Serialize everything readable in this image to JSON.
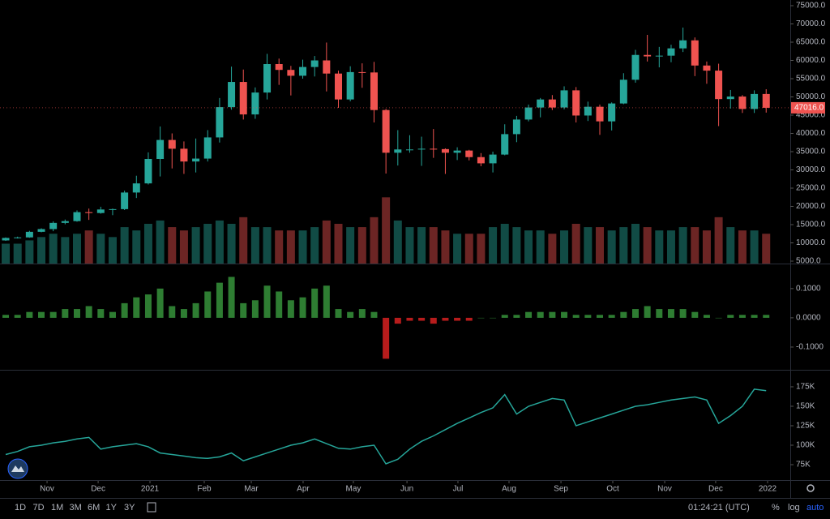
{
  "chart_data": [
    {
      "type": "candlestick",
      "grid": false,
      "up_color": "#26a69a",
      "down_color": "#ef5350",
      "xlim": [
        -0.48,
        66.03
      ],
      "ylim": [
        4333,
        76556
      ],
      "yticks": [
        {
          "value": 5000,
          "label": "5000.0"
        },
        {
          "value": 10000,
          "label": "10000.0"
        },
        {
          "value": 15000,
          "label": "15000.0"
        },
        {
          "value": 20000,
          "label": "20000.0"
        },
        {
          "value": 25000,
          "label": "25000.0"
        },
        {
          "value": 30000,
          "label": "30000.0"
        },
        {
          "value": 35000,
          "label": "35000.0"
        },
        {
          "value": 40000,
          "label": "40000.0"
        },
        {
          "value": 45000,
          "label": "45000.0"
        },
        {
          "value": 50000,
          "label": "50000.0"
        },
        {
          "value": 55000,
          "label": "55000.0"
        },
        {
          "value": 60000,
          "label": "60000.0"
        },
        {
          "value": 65000,
          "label": "65000.0"
        },
        {
          "value": 70000,
          "label": "70000.0"
        },
        {
          "value": 75000,
          "label": "75000.0"
        }
      ],
      "open": [
        10670,
        11360,
        11500,
        13030,
        13780,
        15480,
        15960,
        18420,
        18180,
        19150,
        19250,
        23800,
        26300,
        33000,
        38200,
        35800,
        32300,
        33100,
        38900,
        47200,
        54100,
        45200,
        51200,
        59000,
        57400,
        55800,
        58200,
        60000,
        56400,
        49300,
        56800,
        56700,
        46400,
        34700,
        35600,
        35600,
        35800,
        35700,
        34700,
        35300,
        33500,
        31800,
        34200,
        39800,
        43800,
        47100,
        49300,
        47100,
        51800,
        44900,
        47300,
        43300,
        48200,
        54700,
        61500,
        61100,
        61300,
        63300,
        65500,
        58600,
        57200,
        49400,
        50100,
        46700,
        50800
      ],
      "high": [
        11500,
        11700,
        13300,
        14000,
        15900,
        16400,
        18900,
        19400,
        19900,
        19400,
        24300,
        28400,
        34800,
        41900,
        40000,
        37800,
        38600,
        40900,
        49700,
        58300,
        57500,
        52600,
        61800,
        60500,
        58500,
        60200,
        61200,
        64900,
        57200,
        58400,
        59200,
        59600,
        46700,
        40900,
        39500,
        39100,
        41200,
        35900,
        36200,
        35500,
        34600,
        35000,
        42500,
        44800,
        47900,
        49700,
        50500,
        52900,
        52700,
        48700,
        47900,
        48500,
        56500,
        62900,
        67000,
        63700,
        64300,
        69000,
        66300,
        59700,
        59100,
        51900,
        50500,
        51800,
        52100
      ],
      "low": [
        10550,
        11200,
        11400,
        12900,
        13200,
        15100,
        15800,
        16300,
        18000,
        17600,
        19000,
        22300,
        26000,
        28200,
        30400,
        28900,
        29300,
        32300,
        37500,
        46500,
        43800,
        44000,
        49300,
        53300,
        50400,
        55000,
        55600,
        51500,
        47000,
        48800,
        52500,
        43000,
        29000,
        31200,
        34700,
        31100,
        33300,
        28900,
        32700,
        32600,
        31000,
        29300,
        34000,
        37600,
        43300,
        44400,
        46400,
        46600,
        43000,
        43400,
        39600,
        40800,
        48000,
        53900,
        59700,
        58100,
        59500,
        62300,
        55700,
        53600,
        42000,
        46800,
        45600,
        45600,
        45700
      ],
      "close": [
        11360,
        11500,
        13030,
        13780,
        15480,
        15960,
        18420,
        18180,
        19150,
        19250,
        23800,
        26300,
        33000,
        38200,
        35800,
        32300,
        33100,
        38900,
        47200,
        54100,
        45200,
        51200,
        59000,
        57400,
        55800,
        58200,
        60000,
        56400,
        49300,
        56800,
        56700,
        46400,
        34700,
        35600,
        35600,
        35800,
        35700,
        34700,
        35300,
        33500,
        31800,
        34200,
        39800,
        43800,
        47100,
        49300,
        47100,
        51800,
        44900,
        47300,
        43300,
        48200,
        54700,
        61500,
        61100,
        61300,
        63300,
        65500,
        58600,
        57200,
        49400,
        50100,
        46700,
        50800,
        47016
      ],
      "volume": [
        30,
        30,
        35,
        40,
        45,
        40,
        45,
        50,
        45,
        40,
        55,
        50,
        60,
        65,
        55,
        50,
        55,
        60,
        65,
        60,
        70,
        55,
        55,
        50,
        50,
        50,
        55,
        65,
        60,
        55,
        55,
        70,
        100,
        65,
        55,
        55,
        55,
        50,
        45,
        45,
        45,
        55,
        60,
        55,
        50,
        50,
        45,
        50,
        60,
        55,
        55,
        50,
        55,
        60,
        55,
        50,
        50,
        55,
        55,
        50,
        70,
        55,
        50,
        50,
        45
      ],
      "vlim": [
        0,
        120
      ],
      "last_price": {
        "value": 47016,
        "label": "47016.0"
      }
    },
    {
      "type": "bar",
      "grid": false,
      "up_color": "#2e7d32",
      "down_color": "#b71c1c",
      "xlim": [
        -0.48,
        66.03
      ],
      "ylim": [
        -0.175,
        0.18
      ],
      "yticks": [
        {
          "value": 0.1,
          "label": "0.1000"
        },
        {
          "value": 0,
          "label": "0.0000"
        },
        {
          "value": -0.1,
          "label": "-0.1000"
        }
      ],
      "values": [
        0.01,
        0.01,
        0.02,
        0.02,
        0.02,
        0.03,
        0.03,
        0.04,
        0.03,
        0.02,
        0.05,
        0.07,
        0.08,
        0.1,
        0.04,
        0.03,
        0.05,
        0.09,
        0.12,
        0.14,
        0.05,
        0.06,
        0.11,
        0.09,
        0.06,
        0.07,
        0.1,
        0.11,
        0.03,
        0.02,
        0.03,
        0.02,
        -0.14,
        -0.02,
        -0.01,
        -0.01,
        -0.02,
        -0.01,
        -0.01,
        -0.01,
        0.0,
        0.0,
        0.01,
        0.01,
        0.02,
        0.02,
        0.02,
        0.02,
        0.01,
        0.01,
        0.01,
        0.01,
        0.02,
        0.03,
        0.04,
        0.03,
        0.03,
        0.03,
        0.02,
        0.01,
        0.0,
        0.01,
        0.01,
        0.01,
        0.01
      ]
    },
    {
      "type": "line",
      "grid": false,
      "color": "#26a69a",
      "xlim": [
        -0.48,
        66.03
      ],
      "ylim": [
        57300,
        195800
      ],
      "yticks": [
        {
          "value": 75000,
          "label": "75K"
        },
        {
          "value": 100000,
          "label": "100K"
        },
        {
          "value": 125000,
          "label": "125K"
        },
        {
          "value": 150000,
          "label": "150K"
        },
        {
          "value": 175000,
          "label": "175K"
        }
      ],
      "values": [
        88000,
        92000,
        98000,
        100000,
        103000,
        105000,
        108000,
        110000,
        95000,
        98000,
        100000,
        102000,
        98000,
        90000,
        88000,
        86000,
        84000,
        83000,
        85000,
        90000,
        80000,
        85000,
        90000,
        95000,
        100000,
        103000,
        108000,
        102000,
        96000,
        95000,
        98000,
        100000,
        76000,
        82000,
        95000,
        105000,
        112000,
        120000,
        128000,
        135000,
        142000,
        148000,
        165000,
        140000,
        150000,
        155000,
        160000,
        158000,
        125000,
        130000,
        135000,
        140000,
        145000,
        150000,
        152000,
        155000,
        158000,
        160000,
        162000,
        158000,
        128000,
        138000,
        150000,
        172000,
        170000
      ],
      "xticks": [
        {
          "value": 3.48,
          "label": "Nov"
        },
        {
          "value": 7.78,
          "label": "Dec"
        },
        {
          "value": 12.14,
          "label": "2021"
        },
        {
          "value": 16.71,
          "label": "Feb"
        },
        {
          "value": 20.67,
          "label": "Mar"
        },
        {
          "value": 25.03,
          "label": "Apr"
        },
        {
          "value": 29.26,
          "label": "May"
        },
        {
          "value": 33.77,
          "label": "Jun"
        },
        {
          "value": 38.06,
          "label": "Jul"
        },
        {
          "value": 42.36,
          "label": "Aug"
        },
        {
          "value": 46.73,
          "label": "Sep"
        },
        {
          "value": 51.09,
          "label": "Oct"
        },
        {
          "value": 55.46,
          "label": "Nov"
        },
        {
          "value": 59.75,
          "label": "Dec"
        },
        {
          "value": 64.12,
          "label": "2022"
        }
      ]
    }
  ],
  "toolbar": {
    "ranges": [
      "1D",
      "7D",
      "1M",
      "3M",
      "6M",
      "1Y",
      "3Y"
    ],
    "clock": "01:24:21 (UTC)",
    "percent": "%",
    "log": "log",
    "auto": "auto"
  }
}
